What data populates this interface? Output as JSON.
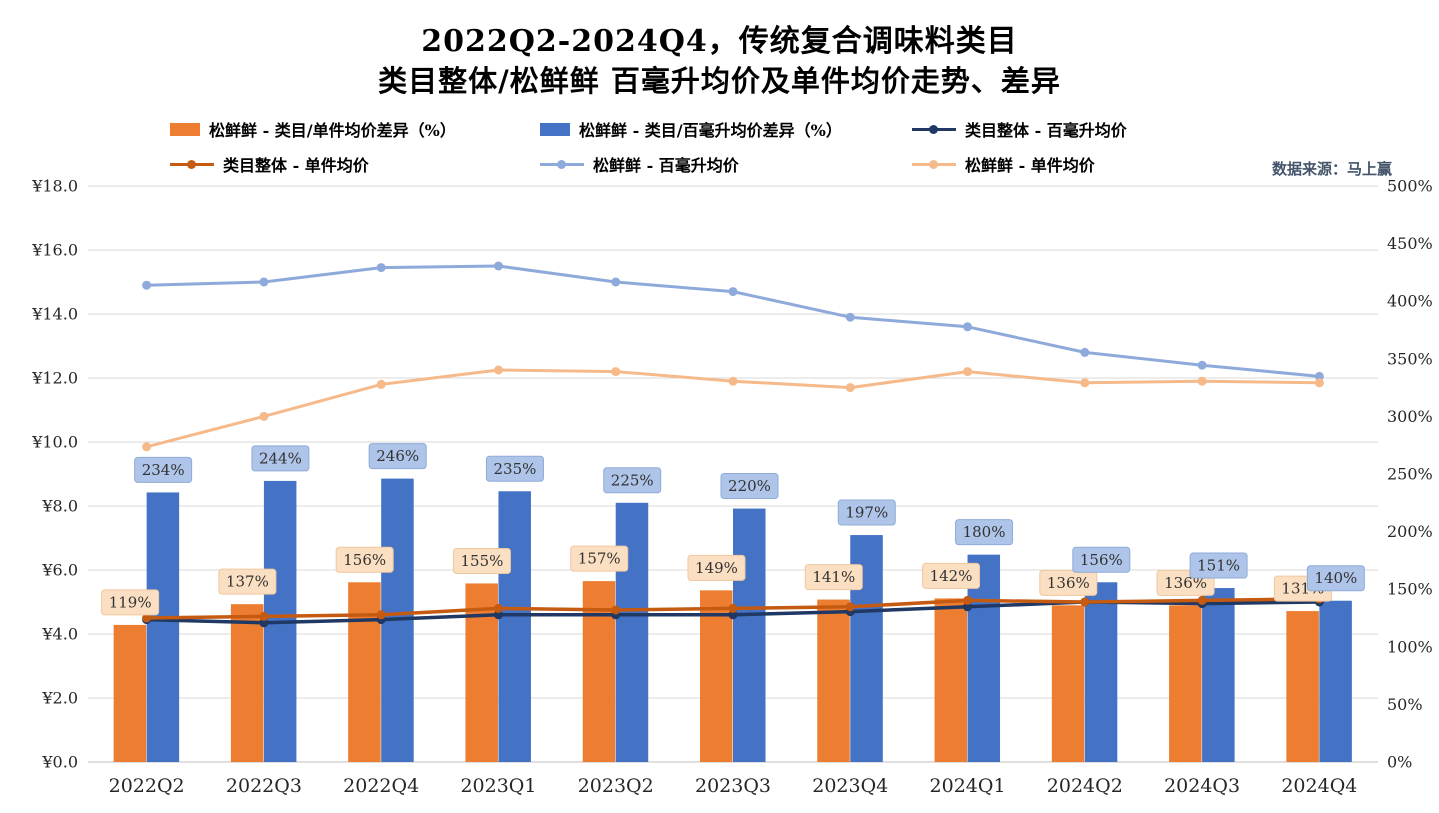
{
  "page": {
    "background": "#FFFFFF"
  },
  "title": {
    "line1": "2022Q2-2024Q4，传统复合调味料类目",
    "line2": "类目整体/松鲜鲜 百毫升均价及单件均价走势、差异"
  },
  "source": "数据来源：马上赢",
  "legend": [
    {
      "label": "松鲜鲜 - 类目/单件均价差异（%）",
      "swatch": "bar",
      "color": "#ED7D31"
    },
    {
      "label": "松鲜鲜 - 类目/百毫升均价差异（%）",
      "swatch": "bar",
      "color": "#4472C4"
    },
    {
      "label": "类目整体 - 百毫升均价",
      "swatch": "line",
      "color": "#1F3864"
    },
    {
      "label": "类目整体 - 单件均价",
      "swatch": "line",
      "color": "#C55A11"
    },
    {
      "label": "松鲜鲜 - 百毫升均价",
      "swatch": "line",
      "color": "#8EAADB"
    },
    {
      "label": "松鲜鲜 - 单件均价",
      "swatch": "line",
      "color": "#F6B98A"
    }
  ],
  "chart_data": {
    "type": "combo_bar_line",
    "title": "2022Q2-2024Q4，传统复合调味料类目 类目整体/松鲜鲜 百毫升均价及单件均价走势、差异",
    "categories": [
      "2022Q2",
      "2022Q3",
      "2022Q4",
      "2023Q1",
      "2023Q2",
      "2023Q3",
      "2023Q4",
      "2024Q1",
      "2024Q2",
      "2024Q3",
      "2024Q4"
    ],
    "left_axis": {
      "unit": "¥",
      "min": 0,
      "max": 18,
      "step": 2,
      "ticks": [
        "¥0.0",
        "¥2.0",
        "¥4.0",
        "¥6.0",
        "¥8.0",
        "¥10.0",
        "¥12.0",
        "¥14.0",
        "¥16.0",
        "¥18.0"
      ]
    },
    "right_axis": {
      "unit": "%",
      "min": 0,
      "max": 500,
      "step": 50,
      "ticks": [
        "0%",
        "50%",
        "100%",
        "150%",
        "200%",
        "250%",
        "300%",
        "350%",
        "400%",
        "450%",
        "500%"
      ]
    },
    "grid": true,
    "legend_position": "top",
    "series": [
      {
        "name": "松鲜鲜 - 类目/单件均价差异（%）",
        "type": "bar",
        "axis": "right",
        "color": "#ED7D31",
        "label_fill": "#FBDFC2",
        "label_stroke": "#EFC79E",
        "values": [
          119,
          137,
          156,
          155,
          157,
          149,
          141,
          142,
          136,
          136,
          131
        ],
        "labels": [
          "119%",
          "137%",
          "156%",
          "155%",
          "157%",
          "149%",
          "141%",
          "142%",
          "136%",
          "136%",
          "131%"
        ]
      },
      {
        "name": "松鲜鲜 - 类目/百毫升均价差异（%）",
        "type": "bar",
        "axis": "right",
        "color": "#4472C4",
        "label_fill": "#AEC4E8",
        "label_stroke": "#8FABD8",
        "values": [
          234,
          244,
          246,
          235,
          225,
          220,
          197,
          180,
          156,
          151,
          140
        ],
        "labels": [
          "234%",
          "244%",
          "246%",
          "235%",
          "225%",
          "220%",
          "197%",
          "180%",
          "156%",
          "151%",
          "140%"
        ]
      },
      {
        "name": "松鲜鲜 - 百毫升均价",
        "type": "line",
        "axis": "left",
        "color": "#8EAADB",
        "width": 3,
        "z": 1,
        "values": [
          14.9,
          15.0,
          15.45,
          15.5,
          15.0,
          14.7,
          13.9,
          13.6,
          12.8,
          12.4,
          12.05
        ]
      },
      {
        "name": "松鲜鲜 - 单件均价",
        "type": "line",
        "axis": "left",
        "color": "#F6B98A",
        "width": 3,
        "z": 2,
        "values": [
          9.85,
          10.8,
          11.8,
          12.25,
          12.2,
          11.9,
          11.7,
          12.2,
          11.85,
          11.9,
          11.85
        ]
      },
      {
        "name": "类目整体 - 百毫升均价",
        "type": "line",
        "axis": "left",
        "color": "#1F3864",
        "width": 3.5,
        "z": 3,
        "values": [
          4.45,
          4.35,
          4.45,
          4.6,
          4.6,
          4.6,
          4.7,
          4.85,
          5.0,
          4.95,
          5.0
        ]
      },
      {
        "name": "类目整体 - 单件均价",
        "type": "line",
        "axis": "left",
        "color": "#C55A11",
        "width": 3.5,
        "z": 4,
        "values": [
          4.5,
          4.55,
          4.6,
          4.8,
          4.75,
          4.8,
          4.85,
          5.05,
          5.0,
          5.05,
          5.1
        ]
      }
    ]
  }
}
